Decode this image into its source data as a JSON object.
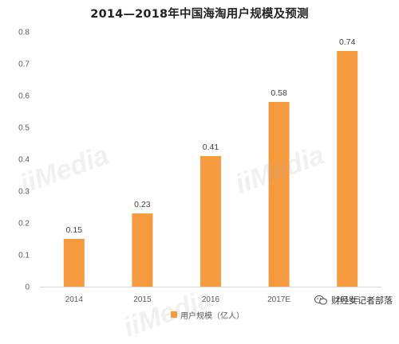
{
  "title": "2014—2018年中国海淘用户规模及预测",
  "legend": {
    "label": "用户规模（亿人）"
  },
  "watermark": {
    "text": "iiMedia"
  },
  "source_tag": {
    "text": "财经女记者部落",
    "icon": "wechat-icon"
  },
  "colors": {
    "bar": "#F59A3E",
    "axis": "#d9d9d9",
    "text": "#595959"
  },
  "chart_data": {
    "type": "bar",
    "title": "2014—2018年中国海淘用户规模及预测",
    "categories": [
      "2014",
      "2015",
      "2016",
      "2017E",
      "2018E"
    ],
    "series": [
      {
        "name": "用户规模（亿人）",
        "values": [
          0.15,
          0.23,
          0.41,
          0.58,
          0.74
        ]
      }
    ],
    "value_labels": [
      "0.15",
      "0.23",
      "0.41",
      "0.58",
      "0.74"
    ],
    "y_ticks": [
      "0",
      "0.1",
      "0.2",
      "0.3",
      "0.4",
      "0.5",
      "0.6",
      "0.7",
      "0.8"
    ],
    "ylim": [
      0,
      0.8
    ],
    "grid": false,
    "legend_position": "bottom"
  }
}
